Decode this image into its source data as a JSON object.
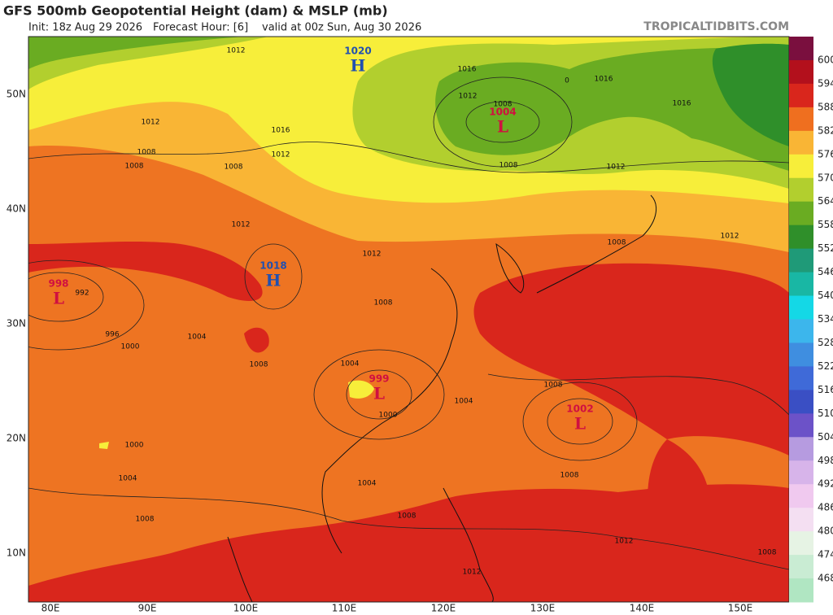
{
  "header": {
    "title": "GFS 500mb Geopotential Height (dam) & MSLP (mb)",
    "init": "Init: 18z Aug 29 2026",
    "forecast_hour": "Forecast Hour: [6]",
    "valid": "valid at 00z Sun, Aug 30 2026",
    "watermark": "TROPICALTIDBITS.COM"
  },
  "latitude_labels": [
    "50N",
    "40N",
    "30N",
    "20N",
    "10N"
  ],
  "longitude_labels": [
    "80E",
    "90E",
    "100E",
    "110E",
    "120E",
    "130E",
    "140E",
    "150E"
  ],
  "colorbar": {
    "ticks": [
      600,
      594,
      588,
      582,
      576,
      570,
      564,
      558,
      552,
      546,
      540,
      534,
      528,
      522,
      516,
      510,
      504,
      498,
      492,
      486,
      480,
      474,
      468
    ],
    "colors": [
      "#7a0f3e",
      "#b3101c",
      "#d9261c",
      "#ef6f1f",
      "#f9b535",
      "#f7ee3a",
      "#b2cf2e",
      "#6aac22",
      "#2f8f2a",
      "#1f9a78",
      "#19b7a4",
      "#14d8e6",
      "#3cb6ec",
      "#3f8ee0",
      "#3f6ad8",
      "#3a4fc4",
      "#6c52c8",
      "#b69be0",
      "#d7b4ea",
      "#f0c9ef",
      "#f4dff2",
      "#e6f3e4",
      "#c9ecd3",
      "#b0e6c2"
    ]
  },
  "pressure_centers": [
    {
      "letter": "H",
      "value": "1020"
    },
    {
      "letter": "L",
      "value": "1004"
    },
    {
      "letter": "L",
      "value": "998"
    },
    {
      "letter": "H",
      "value": "1018"
    },
    {
      "letter": "L",
      "value": "999"
    },
    {
      "letter": "L",
      "value": "1002"
    }
  ],
  "isobar_labels": [
    "1012",
    "1012",
    "1016",
    "1012",
    "1008",
    "1008",
    "1008",
    "1016",
    "1012",
    "1008",
    "1008",
    "1016",
    "0",
    "1016",
    "1012",
    "1012",
    "1008",
    "1012",
    "1012",
    "992",
    "996",
    "1000",
    "1004",
    "1008",
    "1008",
    "1004",
    "1000",
    "1004",
    "1008",
    "1008",
    "1000",
    "1004",
    "1008",
    "1004",
    "1008",
    "1012",
    "1008",
    "1012"
  ]
}
